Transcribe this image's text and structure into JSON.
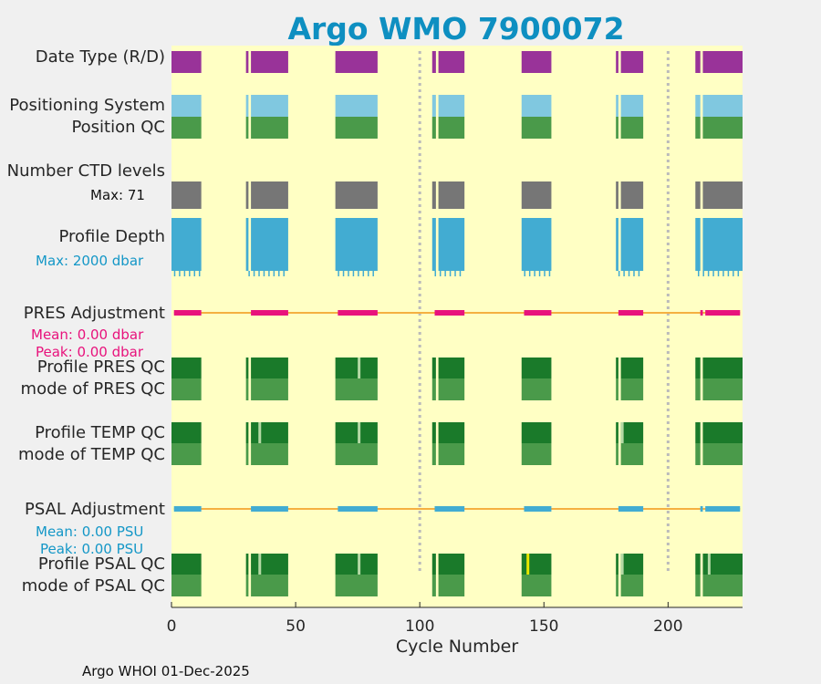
{
  "title": "Argo WMO 7900072",
  "footer": "Argo WHOI 01-Dec-2025",
  "labels": {
    "date_type": "Date Type (R/D)",
    "positioning_system": "Positioning System",
    "position_qc": "Position QC",
    "num_levels": "Number CTD levels",
    "num_levels_max": "Max: 71",
    "profile_depth": "Profile Depth",
    "depth_max": "Max: 2000 dbar",
    "pres_adj": "PRES Adjustment",
    "pres_mean": "Mean: 0.00 dbar",
    "pres_peak": "Peak: 0.00 dbar",
    "pres_qc": "Profile PRES QC",
    "pres_mode": "mode of PRES QC",
    "temp_qc": "Profile TEMP QC",
    "temp_mode": "mode of TEMP QC",
    "psal_adj": "PSAL Adjustment",
    "psal_mean": "Mean: 0.00 PSU",
    "psal_peak": "Peak: 0.00 PSU",
    "psal_qc": "Profile PSAL QC",
    "psal_mode": "mode of PSAL QC"
  },
  "colors": {
    "background": "#ffffc4",
    "date_type": "#993399",
    "positioning": "#80c8e0",
    "qc_good": "#4a9a4a",
    "profile_qc_a": "#1a7a2a",
    "levels": "#767676",
    "depth": "#42acd2",
    "pres_adj": "#e8127c",
    "psal_adj": "#42acd2",
    "adj_line": "#f5b041",
    "vline": "#bbbbbb",
    "title": "#0e8fc1",
    "pres_stats": "#e8127c",
    "psal_stats": "#1497c7"
  },
  "chart_data": {
    "type": "timeline",
    "title": "Argo WMO 7900072",
    "xlabel": "Cycle Number",
    "xlim": [
      0,
      230
    ],
    "xticks": [
      0,
      50,
      100,
      150,
      200
    ],
    "reference_lines": [
      100,
      200
    ],
    "cycle_groups": [
      [
        0,
        12
      ],
      [
        30,
        47
      ],
      [
        66,
        83
      ],
      [
        105,
        118
      ],
      [
        141,
        153
      ],
      [
        179,
        190
      ],
      [
        211,
        230
      ]
    ],
    "single_cycles": [
      30
    ],
    "groups_with_gap": [
      [
        179,
        180
      ],
      [
        105,
        106
      ]
    ],
    "data_mode": "D",
    "number_ctd_levels_max": 71,
    "profile_depth_max_dbar": 2000,
    "pres_adjustment": {
      "mean_dbar": 0.0,
      "peak_dbar": 0.0
    },
    "psal_adjustment": {
      "mean_psu": 0.0,
      "peak_psu": 0.0
    },
    "qc_flag_cycles": {
      "pres_qc_b": [
        75
      ],
      "temp_qc_b": [
        35,
        75,
        181
      ],
      "psal_qc_b": [
        35,
        75,
        181,
        216
      ],
      "psal_qc_c": [
        143
      ]
    }
  }
}
